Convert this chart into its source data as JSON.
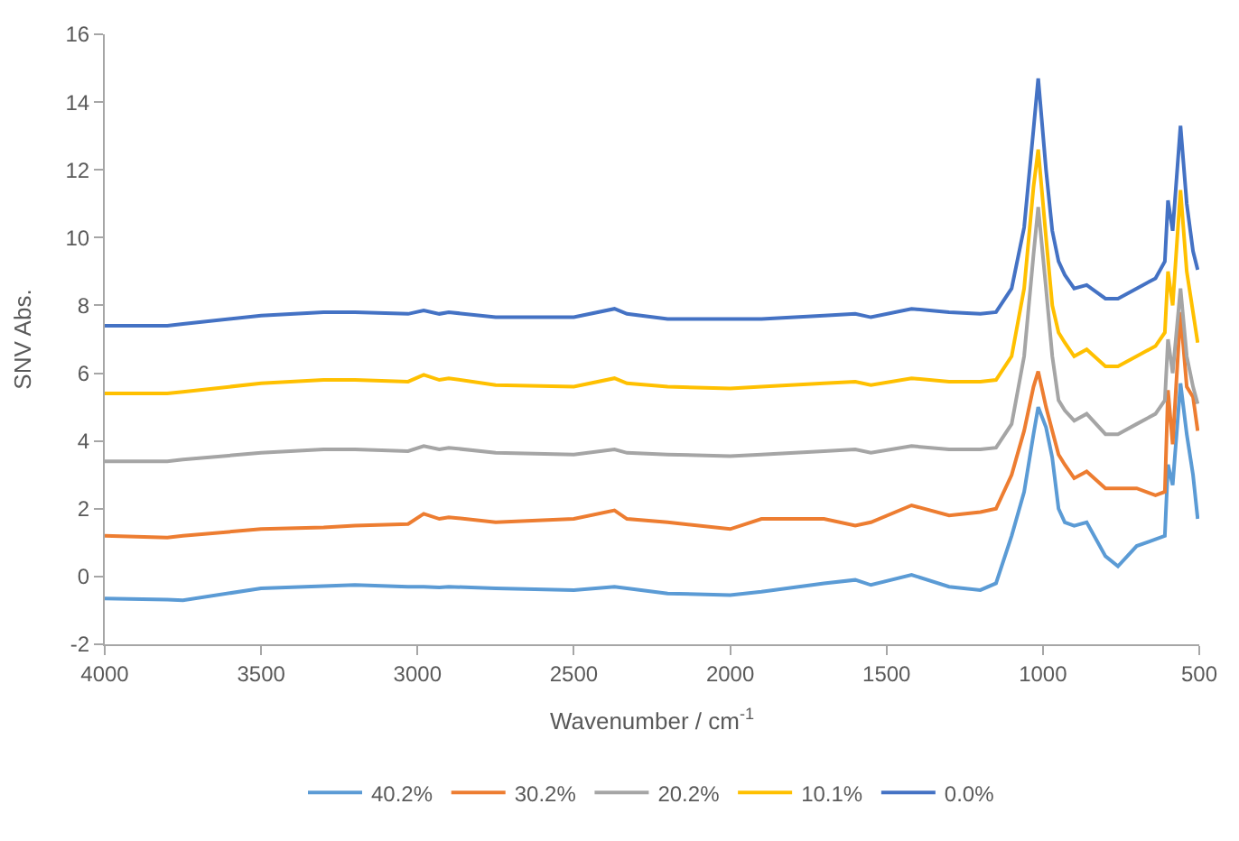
{
  "chart_data": {
    "type": "line",
    "xlabel": "Wavenumber / cm$^{-1}$",
    "ylabel": "SNV Abs.",
    "xlim": [
      4000,
      500
    ],
    "xticks": [
      4000,
      3500,
      3000,
      2500,
      2000,
      1500,
      1000,
      500
    ],
    "ylim": [
      -2,
      16
    ],
    "yticks": [
      -2,
      0,
      2,
      4,
      6,
      8,
      10,
      12,
      14,
      16
    ],
    "legend": "bottom",
    "marker": "none",
    "line_style": "solid",
    "x": [
      4000,
      3800,
      3750,
      3500,
      3300,
      3200,
      3030,
      2980,
      2930,
      2900,
      2750,
      2500,
      2370,
      2330,
      2200,
      2000,
      1900,
      1700,
      1600,
      1550,
      1420,
      1300,
      1200,
      1150,
      1100,
      1060,
      1030,
      1015,
      990,
      970,
      950,
      930,
      900,
      860,
      800,
      760,
      700,
      640,
      610,
      600,
      585,
      560,
      540,
      520,
      505
    ],
    "series": [
      {
        "name": "40.2%",
        "color": "#5b9bd5",
        "values": [
          -0.65,
          -0.68,
          -0.7,
          -0.35,
          -0.28,
          -0.25,
          -0.3,
          -0.3,
          -0.32,
          -0.3,
          -0.35,
          -0.4,
          -0.3,
          -0.35,
          -0.5,
          -0.55,
          -0.45,
          -0.2,
          -0.1,
          -0.25,
          0.05,
          -0.3,
          -0.4,
          -0.2,
          1.2,
          2.5,
          4.2,
          5.0,
          4.4,
          3.5,
          2.0,
          1.6,
          1.5,
          1.6,
          0.6,
          0.3,
          0.9,
          1.1,
          1.2,
          3.3,
          2.7,
          5.7,
          4.2,
          3.0,
          1.7
        ]
      },
      {
        "name": "30.2%",
        "color": "#ed7d31",
        "values": [
          1.2,
          1.15,
          1.2,
          1.4,
          1.45,
          1.5,
          1.55,
          1.85,
          1.7,
          1.75,
          1.6,
          1.7,
          1.95,
          1.7,
          1.6,
          1.4,
          1.7,
          1.7,
          1.5,
          1.6,
          2.1,
          1.8,
          1.9,
          2.0,
          3.0,
          4.3,
          5.6,
          6.05,
          5.0,
          4.3,
          3.6,
          3.3,
          2.9,
          3.1,
          2.6,
          2.6,
          2.6,
          2.4,
          2.5,
          5.5,
          3.9,
          7.8,
          5.6,
          5.3,
          4.3
        ]
      },
      {
        "name": "20.2%",
        "color": "#a5a5a5",
        "values": [
          3.4,
          3.4,
          3.45,
          3.65,
          3.75,
          3.75,
          3.7,
          3.85,
          3.75,
          3.8,
          3.65,
          3.6,
          3.75,
          3.65,
          3.6,
          3.55,
          3.6,
          3.7,
          3.75,
          3.65,
          3.85,
          3.75,
          3.75,
          3.8,
          4.5,
          6.5,
          9.5,
          10.9,
          8.5,
          6.5,
          5.2,
          4.9,
          4.6,
          4.8,
          4.2,
          4.2,
          4.5,
          4.8,
          5.2,
          7.0,
          6.0,
          8.5,
          6.5,
          5.6,
          5.1
        ]
      },
      {
        "name": "10.1%",
        "color": "#ffc000",
        "values": [
          5.4,
          5.4,
          5.45,
          5.7,
          5.8,
          5.8,
          5.75,
          5.95,
          5.8,
          5.85,
          5.65,
          5.6,
          5.85,
          5.7,
          5.6,
          5.55,
          5.6,
          5.7,
          5.75,
          5.65,
          5.85,
          5.75,
          5.75,
          5.8,
          6.5,
          8.5,
          11.5,
          12.6,
          10.0,
          8.0,
          7.2,
          6.9,
          6.5,
          6.7,
          6.2,
          6.2,
          6.5,
          6.8,
          7.2,
          9.0,
          8.0,
          11.4,
          9.0,
          7.8,
          6.9
        ]
      },
      {
        "name": "0.0%",
        "color": "#4472c4",
        "values": [
          7.4,
          7.4,
          7.45,
          7.7,
          7.8,
          7.8,
          7.75,
          7.85,
          7.75,
          7.8,
          7.65,
          7.65,
          7.9,
          7.75,
          7.6,
          7.6,
          7.6,
          7.7,
          7.75,
          7.65,
          7.9,
          7.8,
          7.75,
          7.8,
          8.5,
          10.3,
          13.2,
          14.7,
          12.0,
          10.2,
          9.3,
          8.9,
          8.5,
          8.6,
          8.2,
          8.2,
          8.5,
          8.8,
          9.3,
          11.1,
          10.2,
          13.3,
          11.0,
          9.6,
          9.05
        ]
      }
    ]
  }
}
